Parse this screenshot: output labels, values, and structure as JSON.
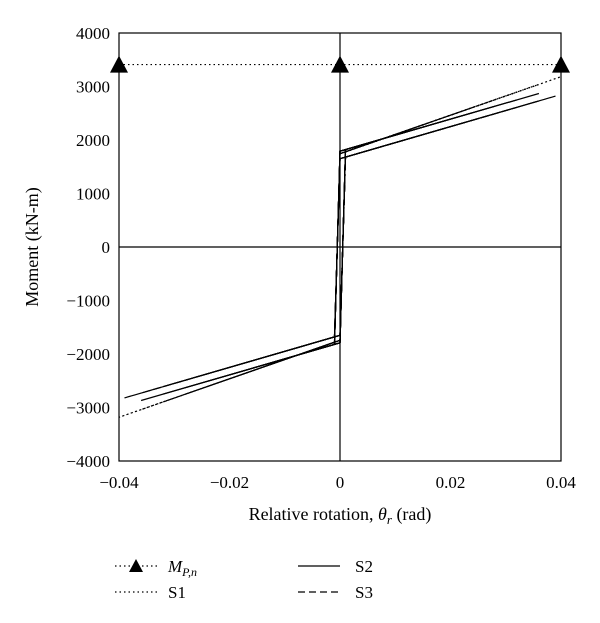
{
  "chart_data": {
    "type": "line",
    "title": "",
    "xlabel_text": "Relative rotation, ",
    "xlabel_symbol": "θ",
    "xlabel_sub": "r",
    "xlabel_unit": " (rad)",
    "ylabel": "Moment (kN-m)",
    "xlim": [
      -0.04,
      0.04
    ],
    "ylim": [
      -4000,
      4000
    ],
    "xticks": [
      "−0.04",
      "−0.02",
      "0",
      "0.02",
      "0.04"
    ],
    "xtick_values": [
      -0.04,
      -0.02,
      0,
      0.02,
      0.04
    ],
    "yticks": [
      "4000",
      "3000",
      "2000",
      "1000",
      "0",
      "−1000",
      "−2000",
      "−3000",
      "−4000"
    ],
    "ytick_values": [
      4000,
      3000,
      2000,
      1000,
      0,
      -1000,
      -2000,
      -3000,
      -4000
    ],
    "grid": false,
    "legend_position": "bottom",
    "mp": {
      "symbol": "M",
      "sub": "P,n",
      "value": 3410,
      "markers_x": [
        -0.04,
        0,
        0.04
      ]
    },
    "series": [
      {
        "name": "S1",
        "style": "dotted",
        "amplitudes": [
          0.004,
          0.008,
          0.012,
          0.016,
          0.02,
          0.024,
          0.028,
          0.032,
          0.036,
          0.04
        ],
        "moment_at_yield": 1780,
        "yield_rotation": 0.001,
        "hardening_slope": 36000
      },
      {
        "name": "S2",
        "style": "solid",
        "amplitudes": [
          0.004,
          0.008,
          0.012,
          0.016,
          0.02,
          0.024,
          0.028,
          0.032,
          0.036
        ],
        "moment_at_yield": 1820,
        "yield_rotation": 0.001,
        "hardening_slope": 30000
      },
      {
        "name": "S3",
        "style": "dashed",
        "amplitudes": [
          0.004,
          0.008,
          0.012,
          0.016,
          0.02,
          0.024,
          0.028,
          0.032,
          0.036,
          0.039
        ],
        "moment_at_yield": 1680,
        "yield_rotation": 0.001,
        "hardening_slope": 30000
      }
    ]
  }
}
